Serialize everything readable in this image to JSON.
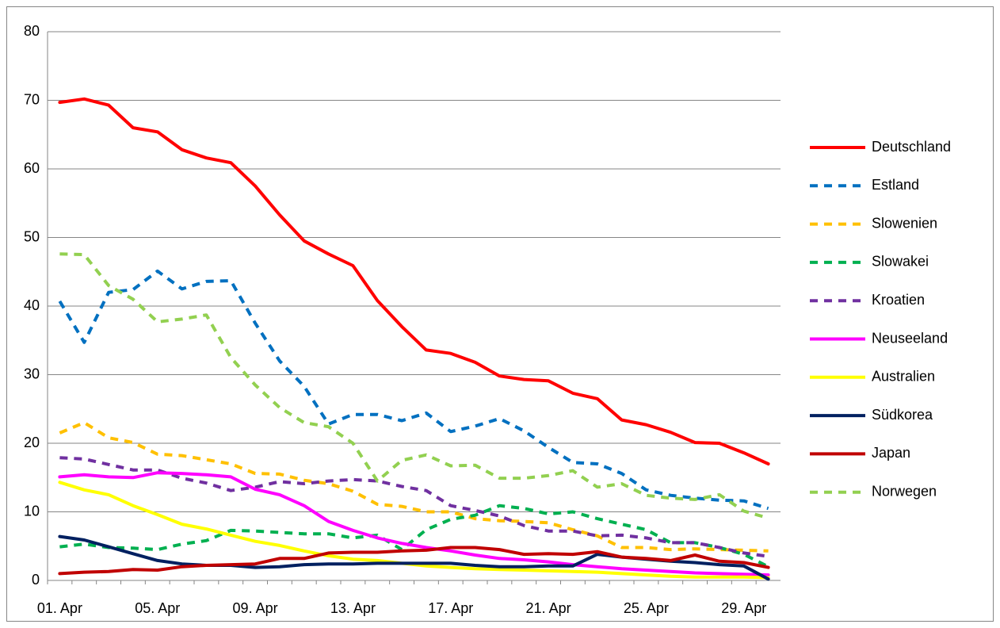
{
  "chart_data": {
    "type": "line",
    "categories": [
      "01. Apr",
      null,
      null,
      null,
      "05. Apr",
      null,
      null,
      null,
      "09. Apr",
      null,
      null,
      null,
      "13. Apr",
      null,
      null,
      null,
      "17. Apr",
      null,
      null,
      null,
      "21. Apr",
      null,
      null,
      null,
      "25. Apr",
      null,
      null,
      null,
      "29. Apr",
      null
    ],
    "ylim": [
      0,
      80
    ],
    "yticks": [
      0,
      10,
      20,
      30,
      40,
      50,
      60,
      70,
      80
    ],
    "grid": true,
    "legend": "right",
    "series": [
      {
        "name": "Deutschland",
        "color": "#ff0000",
        "dash": false,
        "values": [
          69.7,
          70.2,
          69.3,
          66,
          65.4,
          62.8,
          61.6,
          60.9,
          57.5,
          53.3,
          49.5,
          47.6,
          45.9,
          40.8,
          37,
          33.6,
          33.1,
          31.8,
          29.8,
          29.3,
          29.1,
          27.3,
          26.5,
          23.4,
          22.7,
          21.6,
          20.1,
          20,
          18.6,
          17
        ]
      },
      {
        "name": "Estland",
        "color": "#0070c0",
        "dash": true,
        "values": [
          40.7,
          34.7,
          42,
          42.4,
          45.1,
          42.5,
          43.6,
          43.7,
          37.5,
          32,
          28.3,
          22.8,
          24.2,
          24.2,
          23.3,
          24.4,
          21.7,
          22.5,
          23.6,
          21.8,
          19.4,
          17.2,
          17,
          15.6,
          13.2,
          12.4,
          12,
          11.7,
          11.6,
          10.5
        ]
      },
      {
        "name": "Slowenien",
        "color": "#ffc000",
        "dash": true,
        "values": [
          21.5,
          23,
          20.8,
          20.1,
          18.4,
          18.2,
          17.6,
          17,
          15.6,
          15.5,
          14.6,
          14.1,
          13,
          11.1,
          10.8,
          10,
          10,
          9,
          8.7,
          8.6,
          8.4,
          7.4,
          6.5,
          4.8,
          4.8,
          4.5,
          4.6,
          4.5,
          4.4,
          4.3
        ]
      },
      {
        "name": "Slowakei",
        "color": "#00b050",
        "dash": true,
        "values": [
          4.9,
          5.3,
          4.8,
          4.7,
          4.5,
          5.3,
          5.8,
          7.3,
          7.2,
          7,
          6.8,
          6.8,
          6.2,
          6.6,
          4.5,
          7.4,
          8.9,
          9.5,
          10.9,
          10.5,
          9.7,
          10,
          9,
          8.2,
          7.4,
          5.5,
          5.5,
          4.8,
          3.8,
          2
        ]
      },
      {
        "name": "Kroatien",
        "color": "#7030a0",
        "dash": true,
        "values": [
          17.9,
          17.7,
          16.9,
          16.1,
          16.1,
          14.9,
          14.2,
          13.1,
          13.6,
          14.4,
          14.1,
          14.5,
          14.7,
          14.5,
          13.7,
          13.1,
          10.9,
          10.2,
          9.4,
          8,
          7.2,
          7.2,
          6.5,
          6.6,
          6.2,
          5.5,
          5.5,
          4.8,
          4,
          3.5
        ]
      },
      {
        "name": "Neuseeland",
        "color": "#ff00ff",
        "dash": false,
        "values": [
          15.1,
          15.4,
          15.1,
          15,
          15.7,
          15.6,
          15.4,
          15.1,
          13.3,
          12.5,
          10.9,
          8.6,
          7.3,
          6.2,
          5.4,
          4.8,
          4.3,
          3.7,
          3.2,
          3,
          2.7,
          2.3,
          2,
          1.7,
          1.5,
          1.3,
          1.1,
          1,
          0.9,
          0.8
        ]
      },
      {
        "name": "Australien",
        "color": "#ffff00",
        "dash": false,
        "values": [
          14.3,
          13.2,
          12.5,
          10.9,
          9.6,
          8.2,
          7.5,
          6.6,
          5.7,
          5.1,
          4.3,
          3.6,
          3.1,
          2.9,
          2.5,
          2.1,
          1.9,
          1.7,
          1.6,
          1.5,
          1.4,
          1.3,
          1.2,
          1,
          0.8,
          0.6,
          0.5,
          0.5,
          0.5,
          0.4
        ]
      },
      {
        "name": "Südkorea",
        "color": "#002060",
        "dash": false,
        "values": [
          6.4,
          5.9,
          4.9,
          3.9,
          2.9,
          2.4,
          2.2,
          2.2,
          1.9,
          2,
          2.3,
          2.4,
          2.4,
          2.5,
          2.5,
          2.5,
          2.5,
          2.2,
          2,
          2,
          2.1,
          2.1,
          3.8,
          3.4,
          3.1,
          2.8,
          2.6,
          2.3,
          2.1,
          0.2
        ]
      },
      {
        "name": "Japan",
        "color": "#c00000",
        "dash": false,
        "values": [
          1,
          1.2,
          1.3,
          1.6,
          1.5,
          2,
          2.2,
          2.3,
          2.4,
          3.2,
          3.2,
          4,
          4.1,
          4.1,
          4.3,
          4.4,
          4.8,
          4.8,
          4.5,
          3.8,
          3.9,
          3.8,
          4.2,
          3.4,
          3.2,
          2.9,
          3.7,
          2.8,
          2.6,
          1.9
        ]
      },
      {
        "name": "Norwegen",
        "color": "#92d050",
        "dash": true,
        "values": [
          47.6,
          47.5,
          43,
          41,
          37.7,
          38.1,
          38.7,
          32.5,
          28.5,
          25.2,
          23,
          22.4,
          20,
          14.5,
          17.5,
          18.3,
          16.7,
          16.8,
          14.9,
          14.9,
          15.3,
          16,
          13.6,
          14.1,
          12.4,
          12,
          11.8,
          12.5,
          10.1,
          9.1
        ]
      }
    ]
  }
}
